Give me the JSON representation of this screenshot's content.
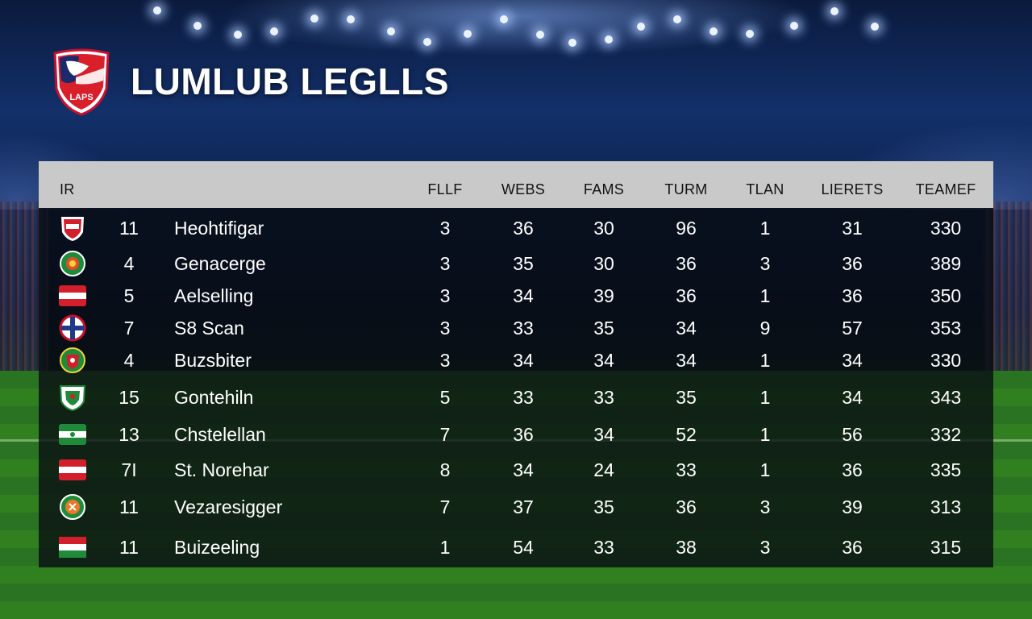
{
  "header": {
    "title": "LUMLUB LEGLLS",
    "logo_text": "LAPS"
  },
  "table": {
    "columns": [
      "IR",
      "FLLF",
      "WEBS",
      "FAMS",
      "TURM",
      "TLAN",
      "LIERETS",
      "TEAMEF"
    ],
    "rows": [
      {
        "flag": "red-white-crest",
        "rank": "11",
        "team": "Heohtifigar",
        "c1": "3",
        "c2": "36",
        "c3": "30",
        "c4": "96",
        "c5": "1",
        "c6": "31",
        "c7": "330"
      },
      {
        "flag": "green-crest",
        "rank": "4",
        "team": "Genacerge",
        "c1": "3",
        "c2": "35",
        "c3": "30",
        "c4": "36",
        "c5": "3",
        "c6": "36",
        "c7": "389"
      },
      {
        "flag": "red-white-band",
        "rank": "5",
        "team": "Aelselling",
        "c1": "3",
        "c2": "34",
        "c3": "39",
        "c4": "36",
        "c5": "1",
        "c6": "36",
        "c7": "350"
      },
      {
        "flag": "blue-cross-ball",
        "rank": "7",
        "team": "S8 Scan",
        "c1": "3",
        "c2": "33",
        "c3": "35",
        "c4": "34",
        "c5": "9",
        "c6": "57",
        "c7": "353"
      },
      {
        "flag": "green-red-crest",
        "rank": "4",
        "team": "Buzsbiter",
        "c1": "3",
        "c2": "34",
        "c3": "34",
        "c4": "34",
        "c5": "1",
        "c6": "34",
        "c7": "330"
      },
      {
        "flag": "green-white-crest",
        "rank": "15",
        "team": "Gontehiln",
        "c1": "5",
        "c2": "33",
        "c3": "33",
        "c4": "35",
        "c5": "1",
        "c6": "34",
        "c7": "343"
      },
      {
        "flag": "green-band",
        "rank": "13",
        "team": "Chstelellan",
        "c1": "7",
        "c2": "36",
        "c3": "34",
        "c4": "52",
        "c5": "1",
        "c6": "56",
        "c7": "332"
      },
      {
        "flag": "red-white-band",
        "rank": "7I",
        "team": "St. Norehar",
        "c1": "8",
        "c2": "34",
        "c3": "24",
        "c4": "33",
        "c5": "1",
        "c6": "36",
        "c7": "335"
      },
      {
        "flag": "green-orange-crest",
        "rank": "11",
        "team": "Vezaresigger",
        "c1": "7",
        "c2": "37",
        "c3": "35",
        "c4": "36",
        "c5": "3",
        "c6": "39",
        "c7": "313"
      },
      {
        "flag": "red-white-green-band",
        "rank": "11",
        "team": "Buizeeling",
        "c1": "1",
        "c2": "54",
        "c3": "33",
        "c4": "38",
        "c5": "3",
        "c6": "36",
        "c7": "315"
      }
    ]
  }
}
